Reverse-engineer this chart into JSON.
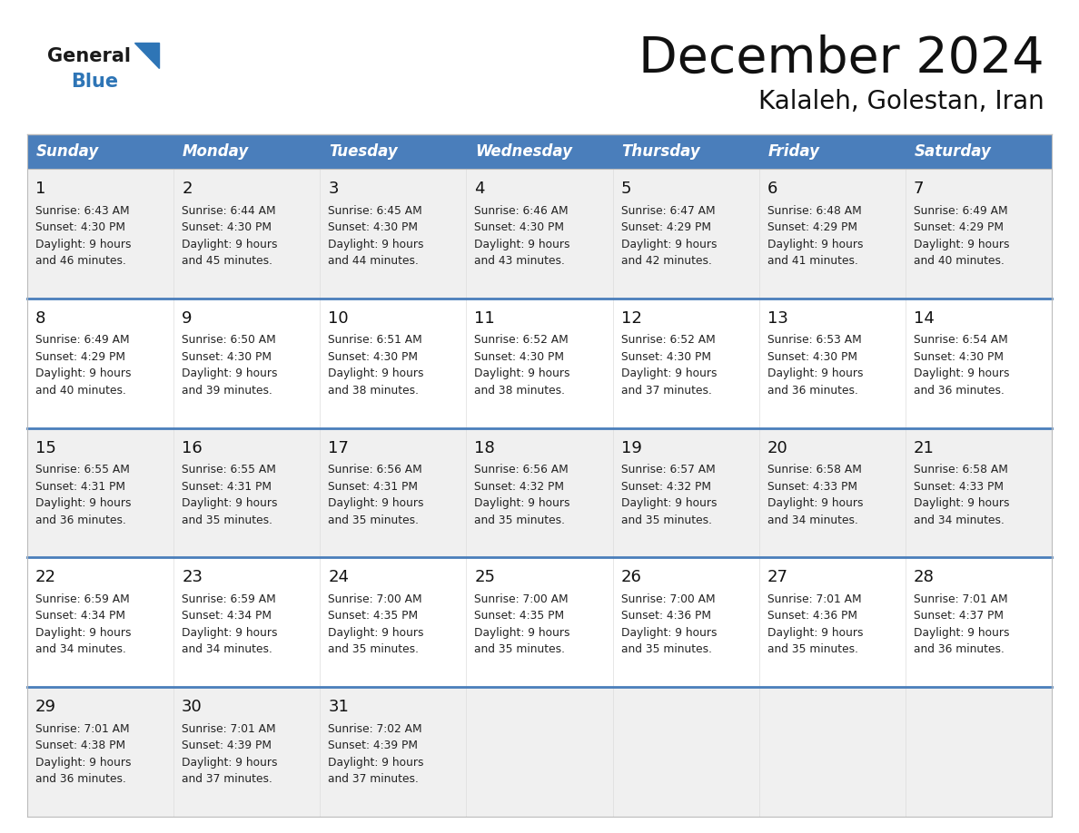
{
  "title": "December 2024",
  "subtitle": "Kalaleh, Golestan, Iran",
  "header_bg": "#4A7EBB",
  "header_text": "#FFFFFF",
  "header_days": [
    "Sunday",
    "Monday",
    "Tuesday",
    "Wednesday",
    "Thursday",
    "Friday",
    "Saturday"
  ],
  "row_bg_light": "#F0F0F0",
  "row_bg_white": "#FFFFFF",
  "divider_color": "#4A7EBB",
  "border_color": "#AAAAAA",
  "text_color": "#222222",
  "calendar": [
    [
      {
        "day": 1,
        "sunrise": "6:43 AM",
        "sunset": "4:30 PM",
        "daylight": "9 hours",
        "daylight2": "and 46 minutes."
      },
      {
        "day": 2,
        "sunrise": "6:44 AM",
        "sunset": "4:30 PM",
        "daylight": "9 hours",
        "daylight2": "and 45 minutes."
      },
      {
        "day": 3,
        "sunrise": "6:45 AM",
        "sunset": "4:30 PM",
        "daylight": "9 hours",
        "daylight2": "and 44 minutes."
      },
      {
        "day": 4,
        "sunrise": "6:46 AM",
        "sunset": "4:30 PM",
        "daylight": "9 hours",
        "daylight2": "and 43 minutes."
      },
      {
        "day": 5,
        "sunrise": "6:47 AM",
        "sunset": "4:29 PM",
        "daylight": "9 hours",
        "daylight2": "and 42 minutes."
      },
      {
        "day": 6,
        "sunrise": "6:48 AM",
        "sunset": "4:29 PM",
        "daylight": "9 hours",
        "daylight2": "and 41 minutes."
      },
      {
        "day": 7,
        "sunrise": "6:49 AM",
        "sunset": "4:29 PM",
        "daylight": "9 hours",
        "daylight2": "and 40 minutes."
      }
    ],
    [
      {
        "day": 8,
        "sunrise": "6:49 AM",
        "sunset": "4:29 PM",
        "daylight": "9 hours",
        "daylight2": "and 40 minutes."
      },
      {
        "day": 9,
        "sunrise": "6:50 AM",
        "sunset": "4:30 PM",
        "daylight": "9 hours",
        "daylight2": "and 39 minutes."
      },
      {
        "day": 10,
        "sunrise": "6:51 AM",
        "sunset": "4:30 PM",
        "daylight": "9 hours",
        "daylight2": "and 38 minutes."
      },
      {
        "day": 11,
        "sunrise": "6:52 AM",
        "sunset": "4:30 PM",
        "daylight": "9 hours",
        "daylight2": "and 38 minutes."
      },
      {
        "day": 12,
        "sunrise": "6:52 AM",
        "sunset": "4:30 PM",
        "daylight": "9 hours",
        "daylight2": "and 37 minutes."
      },
      {
        "day": 13,
        "sunrise": "6:53 AM",
        "sunset": "4:30 PM",
        "daylight": "9 hours",
        "daylight2": "and 36 minutes."
      },
      {
        "day": 14,
        "sunrise": "6:54 AM",
        "sunset": "4:30 PM",
        "daylight": "9 hours",
        "daylight2": "and 36 minutes."
      }
    ],
    [
      {
        "day": 15,
        "sunrise": "6:55 AM",
        "sunset": "4:31 PM",
        "daylight": "9 hours",
        "daylight2": "and 36 minutes."
      },
      {
        "day": 16,
        "sunrise": "6:55 AM",
        "sunset": "4:31 PM",
        "daylight": "9 hours",
        "daylight2": "and 35 minutes."
      },
      {
        "day": 17,
        "sunrise": "6:56 AM",
        "sunset": "4:31 PM",
        "daylight": "9 hours",
        "daylight2": "and 35 minutes."
      },
      {
        "day": 18,
        "sunrise": "6:56 AM",
        "sunset": "4:32 PM",
        "daylight": "9 hours",
        "daylight2": "and 35 minutes."
      },
      {
        "day": 19,
        "sunrise": "6:57 AM",
        "sunset": "4:32 PM",
        "daylight": "9 hours",
        "daylight2": "and 35 minutes."
      },
      {
        "day": 20,
        "sunrise": "6:58 AM",
        "sunset": "4:33 PM",
        "daylight": "9 hours",
        "daylight2": "and 34 minutes."
      },
      {
        "day": 21,
        "sunrise": "6:58 AM",
        "sunset": "4:33 PM",
        "daylight": "9 hours",
        "daylight2": "and 34 minutes."
      }
    ],
    [
      {
        "day": 22,
        "sunrise": "6:59 AM",
        "sunset": "4:34 PM",
        "daylight": "9 hours",
        "daylight2": "and 34 minutes."
      },
      {
        "day": 23,
        "sunrise": "6:59 AM",
        "sunset": "4:34 PM",
        "daylight": "9 hours",
        "daylight2": "and 34 minutes."
      },
      {
        "day": 24,
        "sunrise": "7:00 AM",
        "sunset": "4:35 PM",
        "daylight": "9 hours",
        "daylight2": "and 35 minutes."
      },
      {
        "day": 25,
        "sunrise": "7:00 AM",
        "sunset": "4:35 PM",
        "daylight": "9 hours",
        "daylight2": "and 35 minutes."
      },
      {
        "day": 26,
        "sunrise": "7:00 AM",
        "sunset": "4:36 PM",
        "daylight": "9 hours",
        "daylight2": "and 35 minutes."
      },
      {
        "day": 27,
        "sunrise": "7:01 AM",
        "sunset": "4:36 PM",
        "daylight": "9 hours",
        "daylight2": "and 35 minutes."
      },
      {
        "day": 28,
        "sunrise": "7:01 AM",
        "sunset": "4:37 PM",
        "daylight": "9 hours",
        "daylight2": "and 36 minutes."
      }
    ],
    [
      {
        "day": 29,
        "sunrise": "7:01 AM",
        "sunset": "4:38 PM",
        "daylight": "9 hours",
        "daylight2": "and 36 minutes."
      },
      {
        "day": 30,
        "sunrise": "7:01 AM",
        "sunset": "4:39 PM",
        "daylight": "9 hours",
        "daylight2": "and 37 minutes."
      },
      {
        "day": 31,
        "sunrise": "7:02 AM",
        "sunset": "4:39 PM",
        "daylight": "9 hours",
        "daylight2": "and 37 minutes."
      },
      null,
      null,
      null,
      null
    ]
  ]
}
